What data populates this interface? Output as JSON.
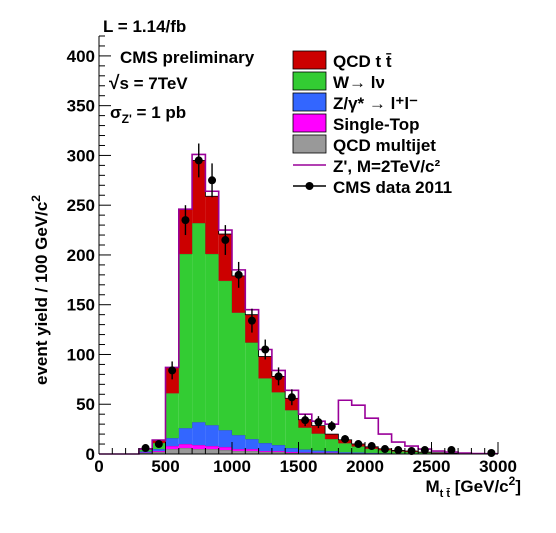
{
  "chart_data": {
    "type": "bar",
    "lumi_label": "L = 1.14/fb",
    "ylabel": "event yield / 100 GeV/c",
    "ylabel_sup": "2",
    "xlabel_main": "M",
    "xlabel_sub": "t t̄",
    "xlabel_unit": " [GeV/c",
    "xlabel_sup": "2",
    "xlabel_close": "]",
    "xlim": [
      0,
      3000
    ],
    "ylim": [
      0,
      420
    ],
    "x_ticks": [
      0,
      500,
      1000,
      1500,
      2000,
      2500,
      3000
    ],
    "y_ticks": [
      0,
      50,
      100,
      150,
      200,
      250,
      300,
      350,
      400
    ],
    "annotations": {
      "line1": "CMS preliminary",
      "line2_root": "√",
      "line2": "s = 7TeV",
      "line3_sigma": "σ",
      "line3_sub": "Z'",
      "line3_rest": " = 1 pb"
    },
    "legend": [
      {
        "label": "QCD t t̄",
        "kind": "box",
        "color": "#cc0000"
      },
      {
        "label": "W→ lν",
        "kind": "box",
        "color": "#33cc33"
      },
      {
        "label": "Z/γ* → l⁺l⁻",
        "kind": "box",
        "color": "#3366ff"
      },
      {
        "label": "Single-Top",
        "kind": "box",
        "color": "#ff00ff"
      },
      {
        "label": "QCD multijet",
        "kind": "box",
        "color": "#999999"
      },
      {
        "label": "Z', M=2TeV/c²",
        "kind": "line",
        "color": "#990099"
      },
      {
        "label": "CMS data 2011",
        "kind": "marker",
        "color": "#000000"
      }
    ],
    "bin_edges": [
      0,
      100,
      200,
      300,
      400,
      500,
      600,
      700,
      800,
      900,
      1000,
      1100,
      1200,
      1300,
      1400,
      1500,
      1600,
      1700,
      1800,
      1900,
      2000,
      2100,
      2200,
      2300,
      2400,
      2500,
      2600,
      2700,
      2800,
      2900,
      3000
    ],
    "stack_series": [
      {
        "name": "QCD multijet",
        "color": "#999999",
        "values": [
          0,
          0,
          0,
          1,
          2,
          5,
          6,
          5,
          5,
          4,
          3,
          3,
          2,
          2,
          1,
          1,
          1,
          1,
          0.5,
          0.5,
          0.5,
          0.3,
          0.3,
          0.2,
          0.2,
          0.1,
          0.1,
          0.1,
          0.1,
          0.1
        ]
      },
      {
        "name": "Single-Top",
        "color": "#ff00ff",
        "values": [
          0,
          0,
          0,
          0.5,
          1,
          3,
          4,
          4,
          3,
          3,
          2,
          2,
          1,
          1,
          1,
          0.5,
          0.5,
          0.5,
          0.3,
          0.3,
          0.2,
          0.2,
          0.1,
          0.1,
          0.1,
          0,
          0,
          0,
          0,
          0
        ]
      },
      {
        "name": "Z/γ* → l⁺l⁻",
        "color": "#3366ff",
        "values": [
          0,
          0,
          0,
          1,
          2,
          8,
          16,
          23,
          21,
          17,
          14,
          10,
          8,
          6,
          4,
          3,
          2,
          1.5,
          1,
          0.8,
          0.5,
          0.3,
          0.2,
          0.2,
          0.1,
          0.1,
          0,
          0,
          0,
          0
        ]
      },
      {
        "name": "W→ lν",
        "color": "#33cc33",
        "values": [
          0,
          0,
          0,
          2,
          6,
          45,
          175,
          200,
          172,
          150,
          123,
          97,
          65,
          53,
          38,
          22,
          17,
          12,
          9,
          6,
          4,
          3,
          2,
          1.5,
          1,
          0.5,
          0.4,
          0.2,
          0.1,
          0.1
        ]
      },
      {
        "name": "QCD t t̄",
        "color": "#cc0000",
        "values": [
          0,
          0,
          0,
          1,
          3,
          26,
          45,
          63,
          58,
          47,
          37,
          28,
          22,
          16,
          12,
          8,
          8,
          5,
          3.5,
          2.5,
          2,
          1.5,
          1,
          1,
          0.5,
          0.5,
          0.3,
          0.2,
          0.2,
          0.1
        ]
      }
    ],
    "zprime": {
      "name": "Z', M=2TeV/c²",
      "color": "#990099",
      "values": [
        0,
        0,
        0,
        5,
        14,
        87,
        246,
        301,
        264,
        225,
        185,
        145,
        105,
        84,
        64,
        40,
        33,
        30,
        54,
        49,
        36,
        20,
        12,
        8,
        5,
        3,
        2,
        1,
        0.5,
        0.3
      ]
    },
    "data_points": {
      "name": "CMS data 2011",
      "x": [
        350,
        450,
        550,
        650,
        750,
        850,
        950,
        1050,
        1150,
        1250,
        1350,
        1450,
        1550,
        1650,
        1750,
        1850,
        1950,
        2050,
        2150,
        2250,
        2350,
        2450,
        2650,
        2950
      ],
      "y": [
        6,
        10,
        84,
        235,
        295,
        275,
        215,
        180,
        134,
        105,
        78,
        57,
        34,
        32,
        28,
        15,
        10,
        8,
        5,
        4,
        3,
        4,
        4,
        1
      ],
      "err": [
        2.5,
        3.2,
        9,
        15,
        17,
        17,
        15,
        13,
        12,
        10,
        9,
        8,
        6,
        6,
        5,
        4,
        3,
        3,
        2.2,
        2,
        1.7,
        2,
        2,
        1
      ]
    }
  }
}
